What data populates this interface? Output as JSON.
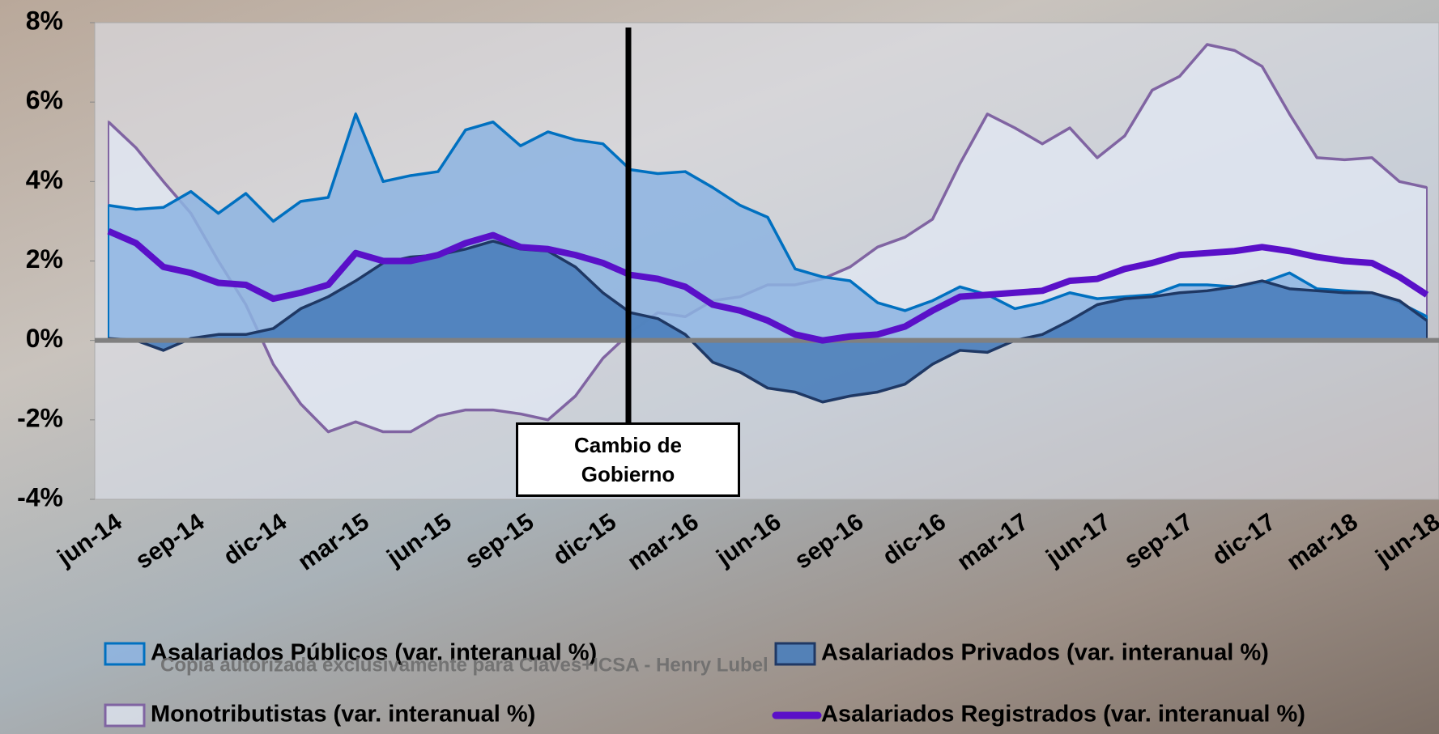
{
  "chart_data": {
    "type": "area",
    "categories": [
      "jun-14",
      null,
      null,
      "sep-14",
      null,
      null,
      "dic-14",
      null,
      null,
      "mar-15",
      null,
      null,
      "jun-15",
      null,
      null,
      "sep-15",
      null,
      null,
      "dic-15",
      null,
      null,
      "mar-16",
      null,
      null,
      "jun-16",
      null,
      null,
      "sep-16",
      null,
      null,
      "dic-16",
      null,
      null,
      "mar-17",
      null,
      null,
      "jun-17",
      null,
      null,
      "sep-17",
      null,
      null,
      "dic-17",
      null,
      null,
      "mar-18",
      null,
      null,
      "jun-18"
    ],
    "ylim": [
      -4,
      8
    ],
    "yticks": [
      {
        "value": -4,
        "label": "-4%"
      },
      {
        "value": -2,
        "label": "-2%"
      },
      {
        "value": 0,
        "label": "0%"
      },
      {
        "value": 2,
        "label": "2%"
      },
      {
        "value": 4,
        "label": "4%"
      },
      {
        "value": 6,
        "label": "6%"
      },
      {
        "value": 8,
        "label": "8%"
      }
    ],
    "grid": false,
    "series": [
      {
        "name": "Monotributistas (var. interanual %)",
        "style": "area",
        "color": "#8064a2",
        "fill": "rgba(226,232,244,0.75)",
        "values": [
          5.5,
          4.85,
          4.0,
          3.2,
          2.0,
          0.9,
          -0.6,
          -1.6,
          -2.3,
          -2.05,
          -2.3,
          -2.3,
          -1.9,
          -1.75,
          -1.75,
          -1.85,
          -2.0,
          -1.4,
          -0.45,
          0.2,
          0.7,
          0.6,
          1.0,
          1.1,
          1.4,
          1.4,
          1.55,
          1.85,
          2.35,
          2.6,
          3.05,
          4.45,
          5.7,
          5.35,
          4.95,
          5.35,
          4.6,
          5.15,
          6.3,
          6.65,
          7.45,
          7.3,
          6.9,
          5.7,
          4.6,
          4.55,
          4.6,
          4.0,
          3.85
        ]
      },
      {
        "name": "Asalariados Públicos (var. interanual %)",
        "style": "area",
        "color": "#0070c0",
        "fill": "rgba(141,180,226,0.85)",
        "values": [
          3.4,
          3.3,
          3.35,
          3.75,
          3.2,
          3.7,
          3.0,
          3.5,
          3.6,
          5.7,
          4.0,
          4.15,
          4.25,
          5.3,
          5.5,
          4.9,
          5.25,
          5.05,
          4.95,
          4.3,
          4.2,
          4.25,
          3.85,
          3.4,
          3.1,
          1.8,
          1.6,
          1.5,
          0.95,
          0.75,
          1.0,
          1.35,
          1.15,
          0.8,
          0.95,
          1.2,
          1.05,
          1.1,
          1.15,
          1.4,
          1.4,
          1.35,
          1.45,
          1.7,
          1.3,
          1.25,
          1.2,
          0.95,
          0.6
        ]
      },
      {
        "name": "Asalariados Privados (var. interanual %)",
        "style": "area",
        "color": "#1f3864",
        "fill": "rgba(74,126,187,0.9)",
        "values": [
          0.05,
          0.0,
          -0.25,
          0.05,
          0.15,
          0.15,
          0.3,
          0.8,
          1.1,
          1.5,
          1.95,
          2.1,
          2.15,
          2.3,
          2.5,
          2.3,
          2.25,
          1.85,
          1.2,
          0.7,
          0.55,
          0.15,
          -0.55,
          -0.8,
          -1.2,
          -1.3,
          -1.55,
          -1.4,
          -1.3,
          -1.1,
          -0.6,
          -0.25,
          -0.3,
          0.0,
          0.15,
          0.5,
          0.9,
          1.05,
          1.1,
          1.2,
          1.25,
          1.35,
          1.5,
          1.3,
          1.25,
          1.2,
          1.2,
          1.0,
          0.5
        ]
      },
      {
        "name": "Asalariados Registrados (var. interanual %)",
        "style": "line",
        "color": "#5a10c8",
        "values": [
          2.75,
          2.45,
          1.85,
          1.7,
          1.45,
          1.4,
          1.05,
          1.2,
          1.4,
          2.2,
          2.0,
          2.0,
          2.15,
          2.45,
          2.65,
          2.35,
          2.3,
          2.15,
          1.95,
          1.65,
          1.55,
          1.35,
          0.9,
          0.75,
          0.5,
          0.15,
          0.0,
          0.1,
          0.15,
          0.35,
          0.75,
          1.1,
          1.15,
          1.2,
          1.25,
          1.5,
          1.55,
          1.8,
          1.95,
          2.15,
          2.2,
          2.25,
          2.35,
          2.25,
          2.1,
          2.0,
          1.95,
          1.6,
          1.15
        ]
      }
    ],
    "annotations": [
      "Cambio de Gobierno",
      "Copia autorizada exclusivamente para Claves+ICSA - Henry Lubel"
    ]
  }
}
